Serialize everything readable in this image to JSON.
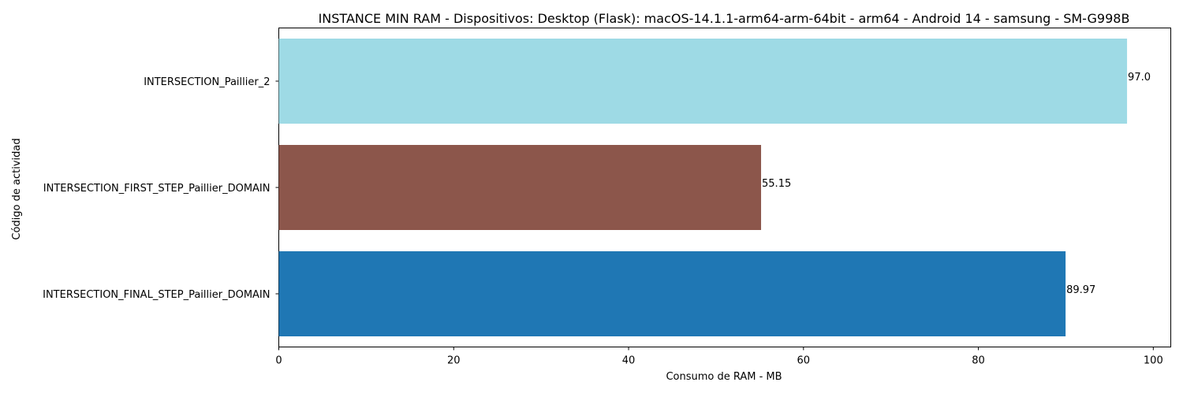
{
  "chart_data": {
    "type": "bar",
    "orientation": "horizontal",
    "title": "INSTANCE MIN RAM - Dispositivos: Desktop (Flask): macOS-14.1.1-arm64-arm-64bit - arm64 - Android 14 - samsung - SM-G998B",
    "xlabel": "Consumo de RAM - MB",
    "ylabel": "Código de actividad",
    "xlim": [
      0,
      102
    ],
    "xticks": [
      0,
      20,
      40,
      60,
      80,
      100
    ],
    "grid": false,
    "legend": "none",
    "categories": [
      "INTERSECTION_Paillier_2",
      "INTERSECTION_FIRST_STEP_Paillier_DOMAIN",
      "INTERSECTION_FINAL_STEP_Paillier_DOMAIN"
    ],
    "values": [
      97.0,
      55.15,
      89.97
    ],
    "value_labels": [
      "97.0",
      "55.15",
      "89.97"
    ],
    "colors": [
      "#9edae5",
      "#8c564b",
      "#1f77b4"
    ]
  }
}
